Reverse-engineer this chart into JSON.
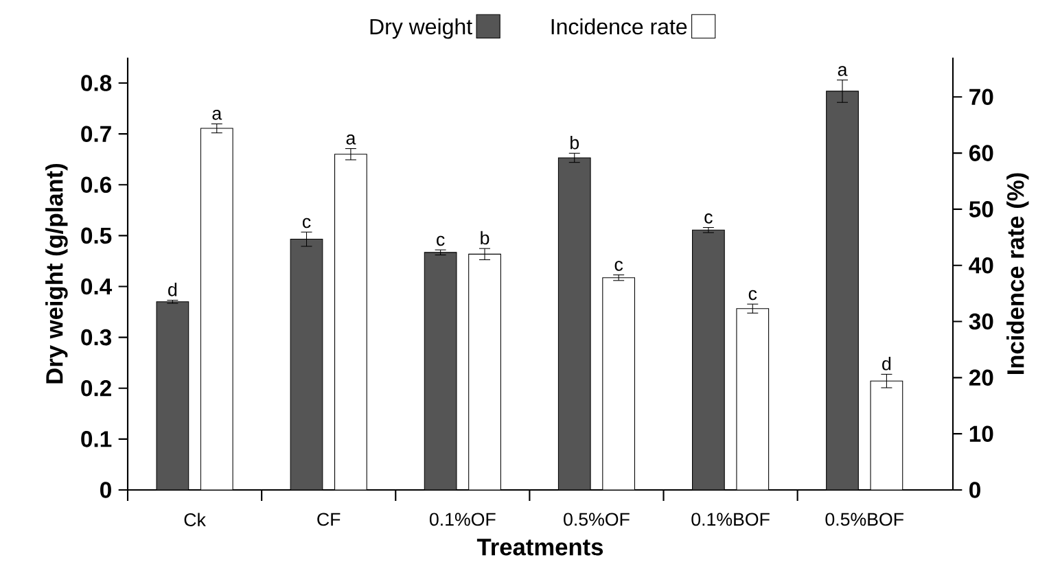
{
  "chart_data": {
    "type": "bar",
    "xlabel": "Treatments",
    "ylabel": "Dry weight (g/plant)",
    "y2label": "Incidence rate (%)",
    "categories": [
      "Ck",
      "CF",
      "0.1%OF",
      "0.5%OF",
      "0.1%BOF",
      "0.5%BOF"
    ],
    "series": [
      {
        "name": "Dry weight",
        "color": "#555555",
        "values": [
          0.37,
          0.493,
          0.467,
          0.653,
          0.511,
          0.784
        ],
        "errors": [
          0.003,
          0.014,
          0.005,
          0.009,
          0.005,
          0.022
        ],
        "value_labels": [
          "d",
          "c",
          "c",
          "b",
          "c",
          "a"
        ]
      },
      {
        "name": "Incidence rate",
        "color": "#ffffff",
        "axis": "y2",
        "values": [
          64.4,
          59.8,
          42.0,
          37.8,
          32.3,
          19.4
        ],
        "errors": [
          0.8,
          1,
          1,
          0.5,
          0.8,
          1.2
        ],
        "value_labels": [
          "a",
          "a",
          "b",
          "c",
          "c",
          "d"
        ]
      }
    ],
    "ylim": [
      0,
      0.85
    ],
    "yticks": [
      0,
      0.1,
      0.2,
      0.3,
      0.4,
      0.5,
      0.6,
      0.7,
      0.8
    ],
    "y2lim": [
      0,
      77
    ],
    "y2ticks": [
      0,
      10,
      20,
      30,
      40,
      50,
      60,
      70
    ],
    "legend": "top",
    "grid": false
  }
}
